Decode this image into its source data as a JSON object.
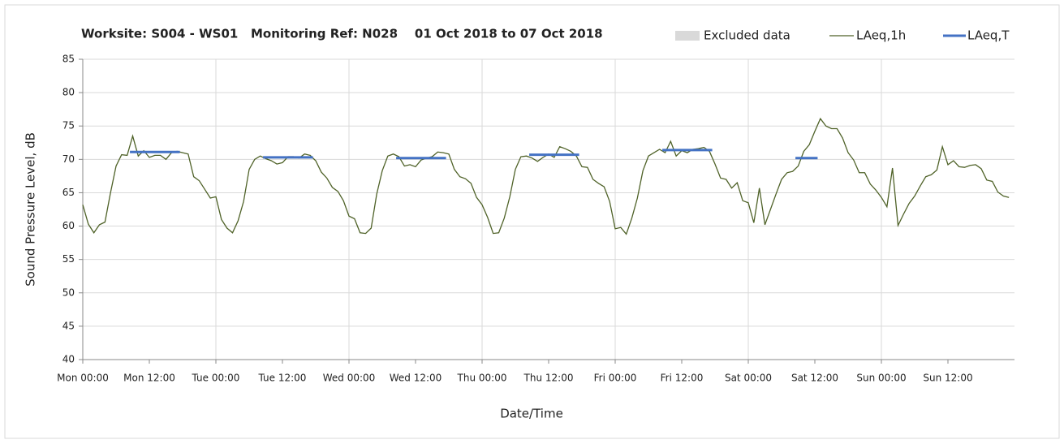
{
  "chart_data": {
    "type": "line",
    "title": "Worksite: S004 - WS01   Monitoring Ref: N028    01 Oct 2018 to 07 Oct 2018",
    "x_label": "Date/Time",
    "y_label": "Sound Pressure Level, dB",
    "excluded_data": {
      "label": "Excluded data",
      "color": "#d9d9d9"
    },
    "x": [
      0,
      1,
      2,
      3,
      4,
      5,
      6,
      7,
      8,
      9,
      10,
      11,
      12,
      13,
      14,
      15,
      16,
      17,
      18,
      19,
      20,
      21,
      22,
      23,
      24,
      25,
      26,
      27,
      28,
      29,
      30,
      31,
      32,
      33,
      34,
      35,
      36,
      37,
      38,
      39,
      40,
      41,
      42,
      43,
      44,
      45,
      46,
      47,
      48,
      49,
      50,
      51,
      52,
      53,
      54,
      55,
      56,
      57,
      58,
      59,
      60,
      61,
      62,
      63,
      64,
      65,
      66,
      67,
      68,
      69,
      70,
      71,
      72,
      73,
      74,
      75,
      76,
      77,
      78,
      79,
      80,
      81,
      82,
      83,
      84,
      85,
      86,
      87,
      88,
      89,
      90,
      91,
      92,
      93,
      94,
      95,
      96,
      97,
      98,
      99,
      100,
      101,
      102,
      103,
      104,
      105,
      106,
      107,
      108,
      109,
      110,
      111,
      112,
      113,
      114,
      115,
      116,
      117,
      118,
      119,
      120,
      121,
      122,
      123,
      124,
      125,
      126,
      127,
      128,
      129,
      130,
      131,
      132,
      133,
      134,
      135,
      136,
      137,
      138,
      139,
      140,
      141,
      142,
      143,
      144,
      145,
      146,
      147,
      148,
      149,
      150,
      151,
      152,
      153,
      154,
      155,
      156,
      157,
      158,
      159,
      160,
      161,
      162,
      163,
      164,
      165,
      166,
      167
    ],
    "series": [
      {
        "name": "LAeq,1h",
        "color": "#4f6228",
        "values": [
          63.2,
          60.3,
          59,
          60.2,
          60.6,
          65,
          69,
          70.7,
          70.6,
          73.5,
          70.5,
          71.3,
          70.3,
          70.6,
          70.6,
          70,
          71,
          71.2,
          71,
          70.8,
          67.4,
          66.8,
          65.5,
          64.2,
          64.4,
          61,
          59.7,
          59,
          60.8,
          63.7,
          68.5,
          70,
          70.5,
          70.1,
          69.8,
          69.3,
          69.5,
          70.4,
          70.4,
          70.2,
          70.8,
          70.6,
          69.8,
          68.1,
          67.2,
          65.8,
          65.2,
          63.8,
          61.5,
          61.1,
          59,
          58.9,
          59.7,
          64.8,
          68.3,
          70.5,
          70.8,
          70.4,
          69,
          69.2,
          68.9,
          69.9,
          70.2,
          70.4,
          71.1,
          71,
          70.8,
          68.5,
          67.4,
          67.1,
          66.4,
          64.3,
          63.2,
          61.3,
          58.9,
          59,
          61.2,
          64.4,
          68.5,
          70.4,
          70.5,
          70.2,
          69.7,
          70.3,
          70.8,
          70.3,
          71.9,
          71.6,
          71.2,
          70.5,
          68.9,
          68.8,
          67,
          66.4,
          65.9,
          63.7,
          59.6,
          59.8,
          58.8,
          61.2,
          64.2,
          68.3,
          70.5,
          71,
          71.5,
          71,
          72.7,
          70.5,
          71.3,
          71,
          71.5,
          71.6,
          71.8,
          71.2,
          69.3,
          67.2,
          67,
          65.7,
          66.5,
          63.8,
          63.5,
          60.5,
          65.7,
          60.2,
          62.5,
          64.8,
          67,
          68,
          68.2,
          69,
          71.2,
          72.2,
          74.2,
          76.1,
          75,
          74.6,
          74.6,
          73.2,
          71,
          69.9,
          68,
          68,
          66.3,
          65.4,
          64.3,
          62.9,
          68.7,
          60.1,
          61.8,
          63.4,
          64.5,
          66,
          67.4,
          67.7,
          68.4,
          71.9,
          69.2,
          69.8,
          68.9,
          68.8,
          69.1,
          69.2,
          68.6,
          66.9,
          66.7,
          65.1,
          64.5,
          64.3
        ]
      }
    ],
    "periods": {
      "name": "LAeq,T",
      "color": "#4472c4",
      "segments": [
        {
          "x": [
            8.5,
            17.5
          ],
          "value": 71.1
        },
        {
          "x": [
            32.5,
            41.5
          ],
          "value": 70.3
        },
        {
          "x": [
            56.5,
            65.5
          ],
          "value": 70.2
        },
        {
          "x": [
            80.5,
            89.5
          ],
          "value": 70.7
        },
        {
          "x": [
            104.5,
            113.5
          ],
          "value": 71.4
        },
        {
          "x": [
            128.5,
            132.5
          ],
          "value": 70.2
        }
      ]
    },
    "xlim": [
      0,
      168
    ],
    "xticks": [
      {
        "value": 0,
        "label": "Mon 00:00"
      },
      {
        "value": 12,
        "label": "Mon 12:00"
      },
      {
        "value": 24,
        "label": "Tue 00:00"
      },
      {
        "value": 36,
        "label": "Tue 12:00"
      },
      {
        "value": 48,
        "label": "Wed 00:00"
      },
      {
        "value": 60,
        "label": "Wed 12:00"
      },
      {
        "value": 72,
        "label": "Thu 00:00"
      },
      {
        "value": 84,
        "label": "Thu 12:00"
      },
      {
        "value": 96,
        "label": "Fri 00:00"
      },
      {
        "value": 108,
        "label": "Fri 12:00"
      },
      {
        "value": 120,
        "label": "Sat 00:00"
      },
      {
        "value": 132,
        "label": "Sat 12:00"
      },
      {
        "value": 144,
        "label": "Sun 00:00"
      },
      {
        "value": 156,
        "label": "Sun 12:00"
      }
    ],
    "ylim": [
      40,
      85
    ],
    "yticks": [
      40,
      45,
      50,
      55,
      60,
      65,
      70,
      75,
      80,
      85
    ],
    "grid": true
  }
}
